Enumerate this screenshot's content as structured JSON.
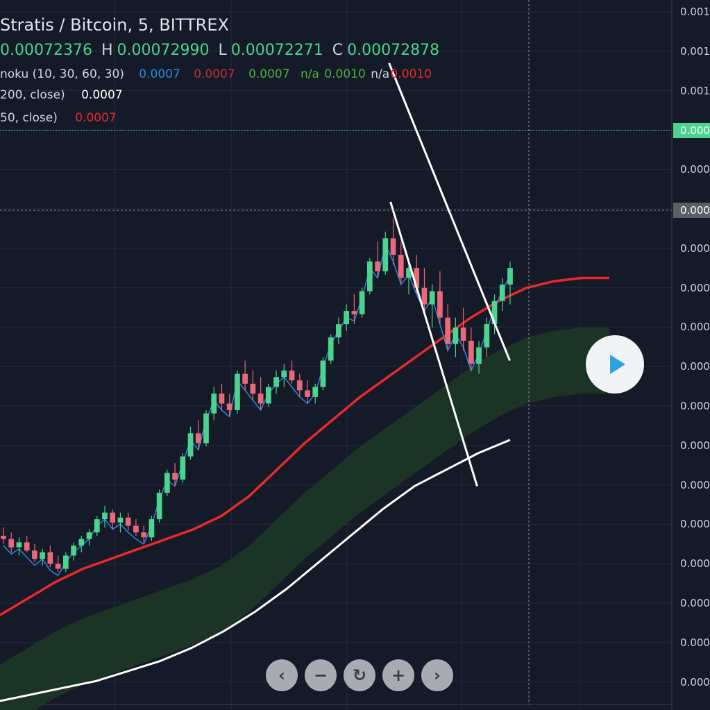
{
  "header": {
    "title": "Stratis / Bitcoin, 5, BITTREX",
    "ohlc": {
      "o_value": "0.00072376",
      "h_label": "H",
      "h_value": "0.00072990",
      "l_label": "L",
      "l_value": "0.00072271",
      "c_label": "C",
      "c_value": "0.00072878"
    },
    "ichimoku": {
      "label": "noku (10, 30, 60, 30)",
      "v1": "0.0007",
      "v2": "0.0007",
      "v3": "0.0007",
      "v4": "n/a",
      "v4b": "0.0010",
      "v5": "n/a",
      "v6": "0.0010"
    },
    "ma200": {
      "label": "200, close)",
      "value": "0.0007"
    },
    "ma50": {
      "label": "50, close)",
      "value": "0.0007"
    }
  },
  "colors": {
    "background": "#151a28",
    "up_candle": "#4cd38f",
    "down_candle": "#e8697a",
    "ma50": "#e8292b",
    "ma200": "#ffffff",
    "tenkan": "#2e86de",
    "kijun": "#a32a30",
    "chikou": "#3c7a2c",
    "cloud_bull": "#1c3a24",
    "cloud_bear": "#3a1a22",
    "play_icon": "#2ea3dd"
  },
  "price_axis": {
    "labels": [
      "0.001",
      "0.001",
      "0.001",
      "0.000",
      "0.000",
      "0.000",
      "0.000",
      "0.000",
      "0.000",
      "0.000",
      "0.000",
      "0.000",
      "0.000",
      "0.000",
      "0.000",
      "0.000",
      "0.000",
      "0.000"
    ],
    "current_price_tag": "0.000",
    "crosshair_price_tag": "0.000"
  },
  "controls": {
    "play_icon": "play-icon",
    "nav": [
      {
        "name": "scroll-left-button",
        "glyph": "‹"
      },
      {
        "name": "zoom-out-button",
        "glyph": "−"
      },
      {
        "name": "reset-button",
        "glyph": "↻"
      },
      {
        "name": "zoom-in-button",
        "glyph": "+"
      },
      {
        "name": "scroll-right-button",
        "glyph": "›"
      }
    ]
  },
  "chart_data": {
    "type": "candlestick",
    "ylim": [
      0.0006,
      0.00102
    ],
    "candles": [
      [
        0.0007,
        0.000705,
        0.000695,
        0.000698
      ],
      [
        0.000698,
        0.000702,
        0.00069,
        0.000693
      ],
      [
        0.000693,
        0.000699,
        0.000688,
        0.000696
      ],
      [
        0.000696,
        0.0007,
        0.00069,
        0.000691
      ],
      [
        0.000691,
        0.000695,
        0.000684,
        0.000686
      ],
      [
        0.000686,
        0.000692,
        0.000682,
        0.00069
      ],
      [
        0.00069,
        0.000694,
        0.000681,
        0.000683
      ],
      [
        0.000683,
        0.000688,
        0.000678,
        0.00068
      ],
      [
        0.00068,
        0.00069,
        0.000678,
        0.000688
      ],
      [
        0.000688,
        0.000696,
        0.000685,
        0.000694
      ],
      [
        0.000694,
        0.0007,
        0.00069,
        0.000698
      ],
      [
        0.000698,
        0.000704,
        0.000694,
        0.000702
      ],
      [
        0.000702,
        0.000712,
        0.0007,
        0.00071
      ],
      [
        0.00071,
        0.000718,
        0.000705,
        0.000714
      ],
      [
        0.000714,
        0.000716,
        0.000704,
        0.000708
      ],
      [
        0.000708,
        0.000714,
        0.000702,
        0.000711
      ],
      [
        0.000711,
        0.000714,
        0.000703,
        0.000706
      ],
      [
        0.000706,
        0.00071,
        0.0007,
        0.000702
      ],
      [
        0.000702,
        0.000706,
        0.000696,
        0.000699
      ],
      [
        0.000699,
        0.000712,
        0.000697,
        0.00071
      ],
      [
        0.00071,
        0.000728,
        0.000708,
        0.000726
      ],
      [
        0.000726,
        0.00074,
        0.000724,
        0.000738
      ],
      [
        0.000738,
        0.000744,
        0.00073,
        0.000734
      ],
      [
        0.000734,
        0.00075,
        0.000732,
        0.000748
      ],
      [
        0.000748,
        0.000766,
        0.000746,
        0.000762
      ],
      [
        0.000762,
        0.00077,
        0.000752,
        0.000756
      ],
      [
        0.000756,
        0.000776,
        0.000754,
        0.000774
      ],
      [
        0.000774,
        0.00079,
        0.00077,
        0.000786
      ],
      [
        0.000786,
        0.000792,
        0.000776,
        0.00078
      ],
      [
        0.00078,
        0.000786,
        0.000772,
        0.000776
      ],
      [
        0.000776,
        0.0008,
        0.000774,
        0.000798
      ],
      [
        0.000798,
        0.000806,
        0.000788,
        0.000792
      ],
      [
        0.000792,
        0.0008,
        0.000782,
        0.000786
      ],
      [
        0.000786,
        0.000796,
        0.000776,
        0.00078
      ],
      [
        0.00078,
        0.000792,
        0.000778,
        0.00079
      ],
      [
        0.00079,
        0.0008,
        0.000786,
        0.000796
      ],
      [
        0.000796,
        0.000804,
        0.00079,
        0.0008
      ],
      [
        0.0008,
        0.000806,
        0.000792,
        0.000794
      ],
      [
        0.000794,
        0.000798,
        0.000784,
        0.000788
      ],
      [
        0.000788,
        0.000794,
        0.00078,
        0.000784
      ],
      [
        0.000784,
        0.000792,
        0.00078,
        0.00079
      ],
      [
        0.00079,
        0.000808,
        0.000788,
        0.000806
      ],
      [
        0.000806,
        0.000822,
        0.000804,
        0.00082
      ],
      [
        0.00082,
        0.000832,
        0.000816,
        0.000828
      ],
      [
        0.000828,
        0.00084,
        0.000824,
        0.000836
      ],
      [
        0.000836,
        0.000846,
        0.000828,
        0.000834
      ],
      [
        0.000834,
        0.00085,
        0.000832,
        0.000848
      ],
      [
        0.000848,
        0.000868,
        0.000846,
        0.000866
      ],
      [
        0.000866,
        0.000878,
        0.000856,
        0.00086
      ],
      [
        0.00086,
        0.000884,
        0.000858,
        0.00088
      ],
      [
        0.00088,
        0.000892,
        0.000864,
        0.00087
      ],
      [
        0.00087,
        0.000878,
        0.000852,
        0.000856
      ],
      [
        0.000856,
        0.000866,
        0.000846,
        0.000862
      ],
      [
        0.000862,
        0.00087,
        0.000846,
        0.00085
      ],
      [
        0.00085,
        0.000862,
        0.000836,
        0.00084
      ],
      [
        0.00084,
        0.000852,
        0.000826,
        0.000848
      ],
      [
        0.000848,
        0.00086,
        0.000828,
        0.000832
      ],
      [
        0.000832,
        0.00084,
        0.000812,
        0.000816
      ],
      [
        0.000816,
        0.000832,
        0.000808,
        0.000826
      ],
      [
        0.000826,
        0.000838,
        0.000812,
        0.000818
      ],
      [
        0.000818,
        0.000826,
        0.0008,
        0.000804
      ],
      [
        0.000804,
        0.000818,
        0.000798,
        0.000814
      ],
      [
        0.000814,
        0.000832,
        0.000808,
        0.000828
      ],
      [
        0.000828,
        0.000846,
        0.000822,
        0.000842
      ],
      [
        0.000842,
        0.000856,
        0.000836,
        0.000852
      ],
      [
        0.000852,
        0.000866,
        0.00084,
        0.000862
      ]
    ],
    "ma50": [
      0.000652,
      0.000662,
      0.000672,
      0.00068,
      0.000686,
      0.000692,
      0.000698,
      0.000704,
      0.000712,
      0.000724,
      0.00074,
      0.000756,
      0.00077,
      0.000784,
      0.000796,
      0.000808,
      0.00082,
      0.000832,
      0.000842,
      0.00085,
      0.000854,
      0.000856,
      0.000856
    ],
    "ma200": [
      0.0006,
      0.000604,
      0.000608,
      0.000612,
      0.000618,
      0.000624,
      0.000632,
      0.000642,
      0.000654,
      0.000668,
      0.000684,
      0.0007,
      0.000716,
      0.00073,
      0.00074,
      0.00075,
      0.000758
    ],
    "trendlines": [
      {
        "x1": 0.548,
        "y1": 0.000986,
        "x2": 0.718,
        "y2": 0.000806
      },
      {
        "x1": 0.55,
        "y1": 0.000902,
        "x2": 0.672,
        "y2": 0.00073
      }
    ]
  }
}
